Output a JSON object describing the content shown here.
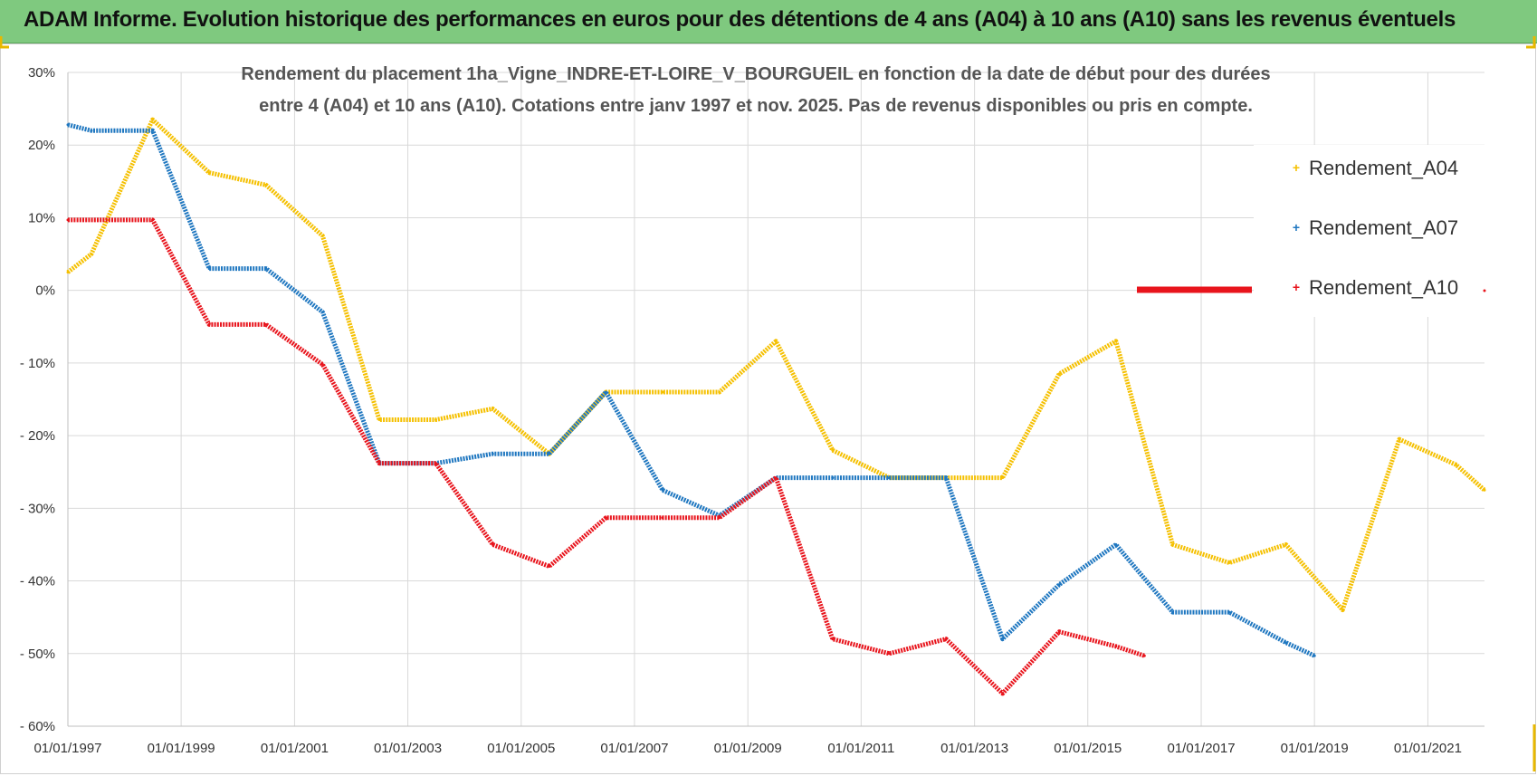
{
  "header": {
    "title": "ADAM Informe. Evolution historique des performances en euros pour des détentions de 4 ans (A04) à 10 ans (A10) sans les revenus éventuels"
  },
  "chart_data": {
    "type": "line",
    "title_lines": [
      "Rendement du placement 1ha_Vigne_INDRE-ET-LOIRE_V_BOURGUEIL en fonction de la date de début pour des durées",
      "entre 4 (A04) et 10 ans (A10).  Cotations entre janv 1997 et  nov. 2025.  Pas de revenus disponibles ou pris en compte."
    ],
    "x_ticks": [
      "01/01/1997",
      "01/01/1999",
      "01/01/2001",
      "01/01/2003",
      "01/01/2005",
      "01/01/2007",
      "01/01/2009",
      "01/01/2011",
      "01/01/2013",
      "01/01/2015",
      "01/01/2017",
      "01/01/2019",
      "01/01/2021"
    ],
    "y_ticks": [
      "30%",
      "20%",
      "10%",
      "0%",
      "- 10%",
      "- 20%",
      "- 30%",
      "- 40%",
      "- 50%",
      "- 60%"
    ],
    "x_range": [
      "1997-01-01",
      "2022-01-01"
    ],
    "ylim": [
      -60,
      30
    ],
    "grid": true,
    "legend_position": "right",
    "series": [
      {
        "name": "Rendement_A04",
        "color": "#f5c000",
        "points": [
          [
            "1997-01-01",
            2.5
          ],
          [
            "1997-06-01",
            5
          ],
          [
            "1998-07-01",
            23.5
          ],
          [
            "1999-07-01",
            16.2
          ],
          [
            "2000-07-01",
            14.5
          ],
          [
            "2001-07-01",
            7.5
          ],
          [
            "2002-07-01",
            -17.8
          ],
          [
            "2003-07-01",
            -17.8
          ],
          [
            "2004-07-01",
            -16.3
          ],
          [
            "2005-07-01",
            -22.5
          ],
          [
            "2006-07-01",
            -14
          ],
          [
            "2007-07-01",
            -14
          ],
          [
            "2008-07-01",
            -14
          ],
          [
            "2009-07-01",
            -7
          ],
          [
            "2010-07-01",
            -22
          ],
          [
            "2011-07-01",
            -25.8
          ],
          [
            "2012-07-01",
            -25.8
          ],
          [
            "2013-07-01",
            -25.8
          ],
          [
            "2014-07-01",
            -11.5
          ],
          [
            "2015-07-01",
            -7
          ],
          [
            "2016-07-01",
            -35
          ],
          [
            "2017-07-01",
            -37.5
          ],
          [
            "2018-07-01",
            -35
          ],
          [
            "2019-07-01",
            -44
          ],
          [
            "2020-07-01",
            -20.5
          ],
          [
            "2021-07-01",
            -24
          ],
          [
            "2022-01-01",
            -27.5
          ]
        ]
      },
      {
        "name": "Rendement_A07",
        "color": "#1f77c0",
        "points": [
          [
            "1997-01-01",
            22.8
          ],
          [
            "1997-06-01",
            22
          ],
          [
            "1998-07-01",
            22
          ],
          [
            "1999-07-01",
            3
          ],
          [
            "2000-07-01",
            3
          ],
          [
            "2001-07-01",
            -3
          ],
          [
            "2002-07-01",
            -23.8
          ],
          [
            "2003-07-01",
            -23.8
          ],
          [
            "2004-07-01",
            -22.5
          ],
          [
            "2005-07-01",
            -22.5
          ],
          [
            "2006-07-01",
            -14
          ],
          [
            "2007-07-01",
            -27.5
          ],
          [
            "2008-07-01",
            -31
          ],
          [
            "2009-07-01",
            -25.8
          ],
          [
            "2010-07-01",
            -25.8
          ],
          [
            "2011-07-01",
            -25.8
          ],
          [
            "2012-07-01",
            -25.8
          ],
          [
            "2013-07-01",
            -48
          ],
          [
            "2014-07-01",
            -40.5
          ],
          [
            "2015-07-01",
            -35
          ],
          [
            "2016-07-01",
            -44.3
          ],
          [
            "2017-07-01",
            -44.3
          ],
          [
            "2018-07-01",
            -48.5
          ],
          [
            "2019-01-01",
            -50.3
          ]
        ]
      },
      {
        "name": "Rendement_A10",
        "color": "#e8141c",
        "points": [
          [
            "1997-01-01",
            9.7
          ],
          [
            "1998-07-01",
            9.7
          ],
          [
            "1999-07-01",
            -4.7
          ],
          [
            "2000-07-01",
            -4.7
          ],
          [
            "2001-07-01",
            -10.2
          ],
          [
            "2002-07-01",
            -23.8
          ],
          [
            "2003-07-01",
            -23.8
          ],
          [
            "2004-07-01",
            -35
          ],
          [
            "2005-07-01",
            -38
          ],
          [
            "2006-07-01",
            -31.3
          ],
          [
            "2007-07-01",
            -31.3
          ],
          [
            "2008-07-01",
            -31.3
          ],
          [
            "2009-07-01",
            -25.8
          ],
          [
            "2010-07-01",
            -48
          ],
          [
            "2011-07-01",
            -50
          ],
          [
            "2012-07-01",
            -48
          ],
          [
            "2013-07-01",
            -55.5
          ],
          [
            "2014-07-01",
            -47
          ],
          [
            "2015-07-01",
            -49
          ],
          [
            "2016-01-01",
            -50.3
          ]
        ]
      }
    ]
  }
}
